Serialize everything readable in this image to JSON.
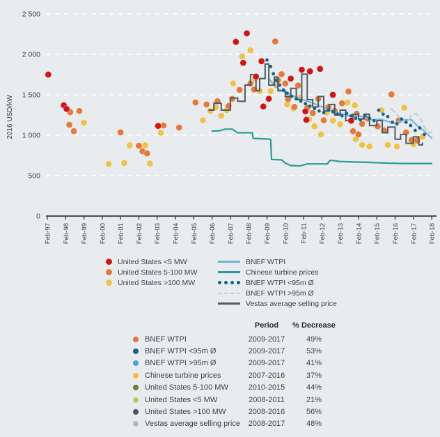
{
  "page": {
    "background": "#e8ecee"
  },
  "chart_data": {
    "type": "scatter",
    "title": "",
    "ylabel": "2016 USD/kW",
    "ylim": [
      0,
      2500
    ],
    "grid": "horizontal-dashed-white",
    "y_ticks": [
      {
        "label": "2 500",
        "value": 2500
      },
      {
        "label": "2 000",
        "value": 2000
      },
      {
        "label": "1 500",
        "value": 1500
      },
      {
        "label": "1 000",
        "value": 1000
      },
      {
        "label": "500",
        "value": 500
      },
      {
        "label": "0",
        "value": 0
      }
    ],
    "x_ticks": [
      "Feb-97",
      "Feb-98",
      "Feb-99",
      "Feb-00",
      "Feb-01",
      "Feb-02",
      "Feb-03",
      "Feb-04",
      "Feb-05",
      "Feb-06",
      "Feb-07",
      "Feb-08",
      "Feb-09",
      "Feb-10",
      "Feb-11",
      "Feb-12",
      "Feb-13",
      "Feb-14",
      "Feb-15",
      "Feb-16",
      "Feb-17",
      "Feb-18"
    ],
    "x_start_year": 1997,
    "series": [
      {
        "name": "United States <5 MW",
        "type": "scatter",
        "color": "#cc1719",
        "points": [
          [
            1997.05,
            1750
          ],
          [
            1997.9,
            1370
          ],
          [
            1998.05,
            1325
          ],
          [
            2003.05,
            1115
          ],
          [
            2007.3,
            2155
          ],
          [
            2007.7,
            1895
          ],
          [
            2007.9,
            2260
          ],
          [
            2008.4,
            1725
          ],
          [
            2008.7,
            1915
          ],
          [
            2008.8,
            1355
          ],
          [
            2009.1,
            1450
          ],
          [
            2010.3,
            1700
          ],
          [
            2010.9,
            1810
          ],
          [
            2011.35,
            1790
          ],
          [
            2011.1,
            1295
          ],
          [
            2011.15,
            1190
          ],
          [
            2011.9,
            1820
          ],
          [
            2012.6,
            1500
          ],
          [
            2013.6,
            1180
          ]
        ]
      },
      {
        "name": "United States 5-100 MW",
        "type": "scatter",
        "color": "#e27a3b",
        "points": [
          [
            1998.25,
            1285
          ],
          [
            1998.75,
            1300
          ],
          [
            1998.2,
            1130
          ],
          [
            1998.45,
            1050
          ],
          [
            2001.0,
            1035
          ],
          [
            2002.0,
            870
          ],
          [
            2002.2,
            800
          ],
          [
            2002.45,
            775
          ],
          [
            2003.35,
            1120
          ],
          [
            2004.2,
            1095
          ],
          [
            2005.1,
            1405
          ],
          [
            2005.7,
            1380
          ],
          [
            2006.3,
            1420
          ],
          [
            2006.9,
            1360
          ],
          [
            2007.1,
            1450
          ],
          [
            2007.5,
            1560
          ],
          [
            2008.1,
            1640
          ],
          [
            2008.3,
            1565
          ],
          [
            2009.45,
            2160
          ],
          [
            2009.6,
            1680
          ],
          [
            2009.8,
            1755
          ],
          [
            2010.0,
            1640
          ],
          [
            2010.15,
            1445
          ],
          [
            2010.5,
            1350
          ],
          [
            2010.7,
            1615
          ],
          [
            2011.2,
            1340
          ],
          [
            2011.5,
            1275
          ],
          [
            2011.8,
            1450
          ],
          [
            2012.1,
            1185
          ],
          [
            2012.35,
            1345
          ],
          [
            2012.7,
            1300
          ],
          [
            2013.1,
            1395
          ],
          [
            2013.45,
            1540
          ],
          [
            2013.9,
            1265
          ],
          [
            2014.2,
            1140
          ],
          [
            2013.7,
            1050
          ],
          [
            2014.0,
            1010
          ],
          [
            2014.5,
            1205
          ],
          [
            2015.05,
            1110
          ],
          [
            2015.4,
            1060
          ],
          [
            2015.8,
            1505
          ],
          [
            2016.2,
            1185
          ],
          [
            2016.6,
            1035
          ],
          [
            2016.9,
            940
          ],
          [
            2017.2,
            935
          ]
        ]
      },
      {
        "name": "United States >100 MW",
        "type": "scatter",
        "color": "#efc14e",
        "points": [
          [
            1999.0,
            1155
          ],
          [
            2000.35,
            645
          ],
          [
            2001.2,
            655
          ],
          [
            2001.5,
            875
          ],
          [
            2002.1,
            860
          ],
          [
            2002.35,
            875
          ],
          [
            2002.6,
            650
          ],
          [
            2003.2,
            1030
          ],
          [
            2005.5,
            1185
          ],
          [
            2005.9,
            1300
          ],
          [
            2006.2,
            1345
          ],
          [
            2006.5,
            1240
          ],
          [
            2006.8,
            1310
          ],
          [
            2007.15,
            1640
          ],
          [
            2007.65,
            1975
          ],
          [
            2008.1,
            2050
          ],
          [
            2008.35,
            1700
          ],
          [
            2008.6,
            1545
          ],
          [
            2009.2,
            1545
          ],
          [
            2009.5,
            1620
          ],
          [
            2010.1,
            1380
          ],
          [
            2010.45,
            1330
          ],
          [
            2010.8,
            1465
          ],
          [
            2011.3,
            1200
          ],
          [
            2011.6,
            1110
          ],
          [
            2011.95,
            1010
          ],
          [
            2012.25,
            1280
          ],
          [
            2012.6,
            1180
          ],
          [
            2013.0,
            1135
          ],
          [
            2013.4,
            1405
          ],
          [
            2013.8,
            1370
          ],
          [
            2013.85,
            950
          ],
          [
            2014.2,
            880
          ],
          [
            2014.6,
            860
          ],
          [
            2015.25,
            1310
          ],
          [
            2015.6,
            880
          ],
          [
            2016.1,
            860
          ],
          [
            2016.5,
            1340
          ],
          [
            2017.0,
            890
          ],
          [
            2017.5,
            980
          ]
        ]
      },
      {
        "name": "BNEF WTPI",
        "type": "line",
        "color": "#79b2d9",
        "points": [
          [
            2009.1,
            1700
          ],
          [
            2009.4,
            1620
          ],
          [
            2009.7,
            1560
          ],
          [
            2010.0,
            1530
          ],
          [
            2010.4,
            1490
          ],
          [
            2010.8,
            1455
          ],
          [
            2011.2,
            1420
          ],
          [
            2011.6,
            1390
          ],
          [
            2012.0,
            1350
          ],
          [
            2012.4,
            1310
          ],
          [
            2012.8,
            1280
          ],
          [
            2013.2,
            1260
          ],
          [
            2013.6,
            1230
          ],
          [
            2014.0,
            1245
          ],
          [
            2014.4,
            1210
          ],
          [
            2014.8,
            1190
          ],
          [
            2015.2,
            1200
          ],
          [
            2015.6,
            1170
          ],
          [
            2016.0,
            1150
          ],
          [
            2016.4,
            1190
          ],
          [
            2016.9,
            1190
          ],
          [
            2017.2,
            1120
          ],
          [
            2017.6,
            1050
          ],
          [
            2018.0,
            965
          ]
        ]
      },
      {
        "name": "Chinese turbine prices",
        "type": "line",
        "color": "#2b9c95",
        "points": [
          [
            2006.0,
            1050
          ],
          [
            2006.4,
            1055
          ],
          [
            2006.7,
            1075
          ],
          [
            2007.1,
            1075
          ],
          [
            2007.4,
            1030
          ],
          [
            2008.2,
            1030
          ],
          [
            2008.25,
            960
          ],
          [
            2008.9,
            955
          ],
          [
            2009.2,
            950
          ],
          [
            2009.25,
            700
          ],
          [
            2009.8,
            695
          ],
          [
            2010.0,
            655
          ],
          [
            2010.3,
            625
          ],
          [
            2010.8,
            620
          ],
          [
            2011.2,
            645
          ],
          [
            2012.3,
            645
          ],
          [
            2012.45,
            690
          ],
          [
            2013.0,
            675
          ],
          [
            2013.6,
            670
          ],
          [
            2014.5,
            665
          ],
          [
            2015.5,
            655
          ],
          [
            2016.5,
            650
          ],
          [
            2017.5,
            650
          ],
          [
            2018.0,
            650
          ]
        ]
      },
      {
        "name": "BNEF WTPI <95m Ø",
        "type": "dotted",
        "color": "#16638a",
        "points": [
          [
            2009.0,
            1930
          ],
          [
            2009.2,
            1850
          ],
          [
            2009.35,
            1760
          ],
          [
            2009.5,
            1680
          ],
          [
            2009.7,
            1620
          ],
          [
            2009.9,
            1560
          ],
          [
            2010.1,
            1520
          ],
          [
            2010.35,
            1480
          ],
          [
            2010.6,
            1450
          ],
          [
            2010.85,
            1420
          ],
          [
            2011.1,
            1390
          ],
          [
            2011.35,
            1360
          ],
          [
            2011.6,
            1330
          ],
          [
            2011.85,
            1300
          ],
          [
            2012.1,
            1280
          ],
          [
            2012.35,
            1310
          ],
          [
            2012.6,
            1290
          ],
          [
            2012.85,
            1260
          ],
          [
            2013.1,
            1240
          ],
          [
            2013.35,
            1270
          ],
          [
            2013.6,
            1240
          ],
          [
            2013.85,
            1210
          ],
          [
            2014.1,
            1190
          ],
          [
            2014.35,
            1240
          ],
          [
            2014.6,
            1210
          ],
          [
            2014.85,
            1180
          ],
          [
            2015.1,
            1310
          ],
          [
            2015.35,
            1260
          ],
          [
            2015.6,
            1230
          ],
          [
            2015.85,
            1160
          ],
          [
            2016.1,
            1140
          ],
          [
            2016.35,
            1200
          ],
          [
            2016.6,
            1160
          ],
          [
            2016.85,
            1120
          ],
          [
            2017.1,
            1060
          ],
          [
            2017.35,
            1090
          ],
          [
            2017.6,
            1010
          ]
        ]
      },
      {
        "name": "BNEF WTPI >95m Ø",
        "type": "dashed",
        "color": "#c7ccd1",
        "points": [
          [
            2015.8,
            1330
          ],
          [
            2016.1,
            1260
          ],
          [
            2016.4,
            1160
          ],
          [
            2016.7,
            1170
          ],
          [
            2016.9,
            1250
          ],
          [
            2017.15,
            1270
          ],
          [
            2017.4,
            1200
          ],
          [
            2017.6,
            1100
          ],
          [
            2017.85,
            1030
          ],
          [
            2018.0,
            1040
          ]
        ]
      },
      {
        "name": "Vestas average selling price",
        "type": "step",
        "color": "#4e5a64",
        "points": [
          [
            2005.8,
            1310
          ],
          [
            2006.1,
            1395
          ],
          [
            2006.5,
            1310
          ],
          [
            2007.0,
            1460
          ],
          [
            2007.4,
            1420
          ],
          [
            2007.8,
            1620
          ],
          [
            2008.1,
            1750
          ],
          [
            2008.4,
            1550
          ],
          [
            2008.6,
            1700
          ],
          [
            2008.9,
            1880
          ],
          [
            2009.1,
            1620
          ],
          [
            2009.4,
            1720
          ],
          [
            2009.6,
            1550
          ],
          [
            2010.0,
            1480
          ],
          [
            2010.3,
            1580
          ],
          [
            2010.6,
            1440
          ],
          [
            2010.9,
            1755
          ],
          [
            2011.2,
            1440
          ],
          [
            2011.5,
            1350
          ],
          [
            2011.8,
            1480
          ],
          [
            2012.1,
            1300
          ],
          [
            2012.4,
            1380
          ],
          [
            2012.7,
            1250
          ],
          [
            2013.0,
            1310
          ],
          [
            2013.3,
            1180
          ],
          [
            2013.7,
            1260
          ],
          [
            2014.0,
            1200
          ],
          [
            2014.3,
            1260
          ],
          [
            2014.6,
            1120
          ],
          [
            2015.0,
            1180
          ],
          [
            2015.3,
            1030
          ],
          [
            2015.6,
            1100
          ],
          [
            2016.0,
            950
          ],
          [
            2016.3,
            1010
          ],
          [
            2016.6,
            900
          ],
          [
            2017.0,
            980
          ],
          [
            2017.3,
            880
          ],
          [
            2017.5,
            910
          ]
        ]
      }
    ]
  },
  "legend": {
    "dot_items": [
      {
        "label": "United States <5 MW",
        "color": "#cc1719"
      },
      {
        "label": "United States 5-100 MW",
        "color": "#e27a3b"
      },
      {
        "label": "United States >100 MW",
        "color": "#efc14e"
      }
    ],
    "line_items": [
      {
        "label": "BNEF WTPI",
        "color": "#79b2d9",
        "style": "solid"
      },
      {
        "label": "Chinese turbine prices",
        "color": "#2b9c95",
        "style": "solid"
      },
      {
        "label": "BNEF WTPI <95m Ø",
        "color": "#16638a",
        "style": "dotted"
      },
      {
        "label": "BNEF WTPI >95m Ø",
        "color": "#c7ccd1",
        "style": "dashed"
      },
      {
        "label": "Vestas average selling price",
        "color": "#4e5a64",
        "style": "solid"
      }
    ]
  },
  "table": {
    "headers": {
      "period": "Period",
      "decrease": "% Decrease"
    },
    "rows": [
      {
        "label": "BNEF WTPI",
        "bullet": "#e2713a",
        "period": "2009-2017",
        "decrease": "49%"
      },
      {
        "label": "BNEF WTPI <95m Ø",
        "bullet": "#16638a",
        "period": "2009-2017",
        "decrease": "53%"
      },
      {
        "label": "BNEF WTPI >95m Ø",
        "bullet": "#4ba3d3",
        "period": "2009-2017",
        "decrease": "41%"
      },
      {
        "label": "Chinese turbine prices",
        "bullet": "#eebd4a",
        "period": "2007-2016",
        "decrease": "37%"
      },
      {
        "label": "United States 5-100 MW",
        "bullet": "#6e7d2e",
        "period": "2010-2015",
        "decrease": "44%"
      },
      {
        "label": "United States <5 MW",
        "bullet": "#b6cd6b",
        "period": "2008-2011",
        "decrease": "21%"
      },
      {
        "label": "United States >100 MW",
        "bullet": "#4c545b",
        "period": "2008-2016",
        "decrease": "56%"
      },
      {
        "label": "Vestas average selling price",
        "bullet": "#b4babf",
        "period": "2008-2017",
        "decrease": "48%"
      }
    ]
  }
}
